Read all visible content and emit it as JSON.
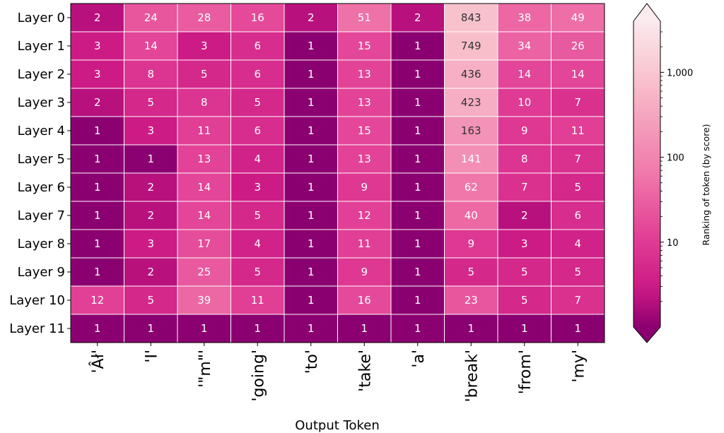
{
  "chart_data": {
    "type": "heatmap",
    "title": "",
    "xlabel": "Output Token",
    "ylabel": "",
    "rows": [
      "Layer 0",
      "Layer 1",
      "Layer 2",
      "Layer 3",
      "Layer 4",
      "Layer 5",
      "Layer 6",
      "Layer 7",
      "Layer 8",
      "Layer 9",
      "Layer 10",
      "Layer 11"
    ],
    "columns": [
      "'Âł'",
      "'I'",
      "'\"m\"'",
      "'going'",
      "'to'",
      "'take'",
      "'a'",
      "'break'",
      "'from'",
      "'my'"
    ],
    "values": [
      [
        2,
        24,
        28,
        16,
        2,
        51,
        2,
        843,
        38,
        49
      ],
      [
        3,
        14,
        3,
        6,
        1,
        15,
        1,
        749,
        34,
        26
      ],
      [
        3,
        8,
        5,
        6,
        1,
        13,
        1,
        436,
        14,
        14
      ],
      [
        2,
        5,
        8,
        5,
        1,
        13,
        1,
        423,
        10,
        7
      ],
      [
        1,
        3,
        11,
        6,
        1,
        15,
        1,
        163,
        9,
        11
      ],
      [
        1,
        1,
        13,
        4,
        1,
        13,
        1,
        141,
        8,
        7
      ],
      [
        1,
        2,
        14,
        3,
        1,
        9,
        1,
        62,
        7,
        5
      ],
      [
        1,
        2,
        14,
        5,
        1,
        12,
        1,
        40,
        2,
        6
      ],
      [
        1,
        3,
        17,
        4,
        1,
        11,
        1,
        9,
        3,
        4
      ],
      [
        1,
        2,
        25,
        5,
        1,
        9,
        1,
        5,
        5,
        5
      ],
      [
        12,
        5,
        39,
        11,
        1,
        16,
        1,
        23,
        5,
        7
      ],
      [
        1,
        1,
        1,
        1,
        1,
        1,
        1,
        1,
        1,
        1
      ]
    ],
    "colorbar": {
      "label": "Ranking of token (by score)",
      "scale": "log",
      "ticks": [
        10,
        100,
        1000
      ],
      "tick_labels": [
        "10",
        "100",
        "1,000"
      ],
      "range": [
        1,
        4000
      ],
      "extend": "both"
    },
    "colors": {
      "low": "#8b0070",
      "high": "#fbe8ec",
      "grid_line": "#ffffff"
    }
  }
}
